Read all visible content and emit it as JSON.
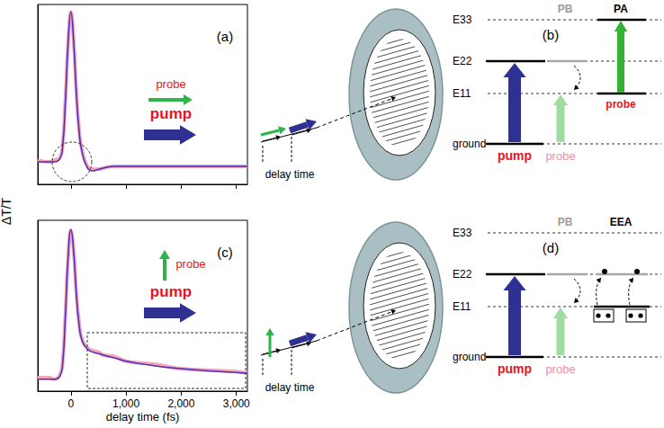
{
  "shared_y_label": "ΔT/T",
  "chart_data": [
    {
      "type": "line",
      "title": "(a)",
      "annotations": {
        "probe": "probe",
        "pump": "pump"
      },
      "x": [
        -600,
        -400,
        -300,
        -200,
        -150,
        -100,
        -50,
        0,
        50,
        100,
        150,
        200,
        300,
        400,
        500,
        600,
        800,
        1000,
        1500,
        2000,
        2500,
        3000,
        3200
      ],
      "series": [
        {
          "color": "#f4a3b8",
          "values": [
            0.01,
            0.0,
            0.01,
            0.03,
            0.11,
            0.41,
            0.79,
            1.0,
            0.81,
            0.46,
            0.21,
            0.08,
            -0.03,
            -0.05,
            -0.05,
            -0.04,
            -0.03,
            -0.03,
            -0.03,
            -0.03,
            -0.03,
            -0.03,
            -0.03
          ]
        },
        {
          "color": "#4a2fbf",
          "values": [
            0.0,
            0.0,
            0.0,
            0.02,
            0.1,
            0.4,
            0.8,
            1.0,
            0.8,
            0.45,
            0.2,
            0.07,
            -0.04,
            -0.06,
            -0.05,
            -0.04,
            -0.03,
            -0.03,
            -0.03,
            -0.03,
            -0.03,
            -0.03,
            -0.03
          ]
        }
      ],
      "xlim": [
        -600,
        3200
      ],
      "xticks": [
        0,
        1000,
        2000,
        3000
      ],
      "ylim": [
        -0.15,
        1.05
      ],
      "tick_labels": false,
      "grid": false
    },
    {
      "type": "line",
      "title": "(c)",
      "x_label": "delay time (fs)",
      "annotations": {
        "probe": "probe",
        "pump": "pump"
      },
      "x": [
        -600,
        -400,
        -300,
        -200,
        -150,
        -100,
        -50,
        0,
        50,
        100,
        150,
        200,
        300,
        400,
        500,
        600,
        800,
        1000,
        1500,
        2000,
        2500,
        3000,
        3200
      ],
      "series": [
        {
          "color": "#f4a3b8",
          "values": [
            0.01,
            0.01,
            0.0,
            0.03,
            0.11,
            0.43,
            0.81,
            0.99,
            0.86,
            0.57,
            0.37,
            0.27,
            0.21,
            0.19,
            0.18,
            0.16,
            0.15,
            0.12,
            0.1,
            0.07,
            0.06,
            0.05,
            0.04
          ]
        },
        {
          "color": "#4a2fbf",
          "values": [
            0.0,
            0.0,
            0.0,
            0.02,
            0.1,
            0.42,
            0.82,
            1.0,
            0.85,
            0.56,
            0.36,
            0.26,
            0.2,
            0.18,
            0.17,
            0.16,
            0.14,
            0.12,
            0.09,
            0.07,
            0.055,
            0.045,
            0.04
          ]
        }
      ],
      "xlim": [
        -600,
        3200
      ],
      "xticks": [
        0,
        1000,
        2000,
        3000
      ],
      "ylim": [
        -0.08,
        1.06
      ],
      "tick_labels": "x",
      "grid": false
    }
  ],
  "diagrams": [
    {
      "title": "(b)",
      "delay_label": "delay time",
      "levels": [
        "E33",
        "E22",
        "E11",
        "ground"
      ],
      "pump_label": "pump",
      "pb_head": "PB",
      "pb_probe": "probe",
      "right_head": "PA",
      "right_probe": "probe"
    },
    {
      "title": "(d)",
      "delay_label": "delay time",
      "levels": [
        "E33",
        "E22",
        "E11",
        "ground"
      ],
      "pump_label": "pump",
      "pb_head": "PB",
      "pb_probe": "probe",
      "right_head": "EEA"
    }
  ]
}
